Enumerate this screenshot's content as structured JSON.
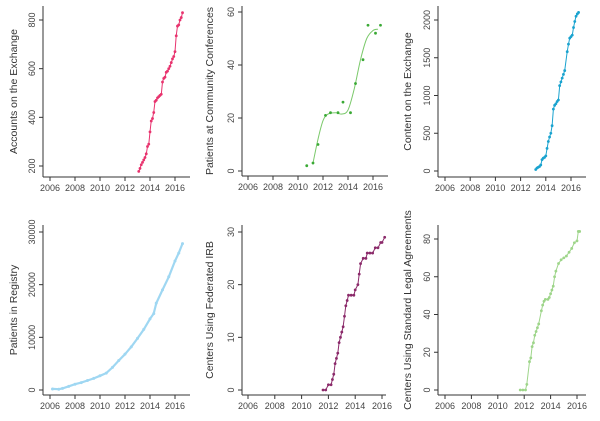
{
  "chart_data": [
    {
      "type": "scatter",
      "ylabel": "Accounts on the Exchange",
      "xticks": [
        "2006",
        "2008",
        "2010",
        "2012",
        "2014",
        "2016"
      ],
      "yticks": [
        200,
        400,
        600,
        800
      ],
      "color": "#e8336e",
      "line": "connect",
      "points": [
        [
          2013.1,
          178
        ],
        [
          2013.2,
          190
        ],
        [
          2013.3,
          205
        ],
        [
          2013.4,
          215
        ],
        [
          2013.5,
          225
        ],
        [
          2013.6,
          235
        ],
        [
          2013.7,
          250
        ],
        [
          2013.8,
          280
        ],
        [
          2013.9,
          290
        ],
        [
          2014.0,
          340
        ],
        [
          2014.1,
          385
        ],
        [
          2014.2,
          395
        ],
        [
          2014.3,
          420
        ],
        [
          2014.4,
          465
        ],
        [
          2014.5,
          470
        ],
        [
          2014.6,
          480
        ],
        [
          2014.7,
          485
        ],
        [
          2014.8,
          490
        ],
        [
          2014.9,
          495
        ],
        [
          2015.0,
          545
        ],
        [
          2015.1,
          560
        ],
        [
          2015.2,
          565
        ],
        [
          2015.3,
          585
        ],
        [
          2015.4,
          590
        ],
        [
          2015.5,
          600
        ],
        [
          2015.6,
          610
        ],
        [
          2015.7,
          625
        ],
        [
          2015.8,
          640
        ],
        [
          2015.9,
          650
        ],
        [
          2016.0,
          670
        ],
        [
          2016.1,
          735
        ],
        [
          2016.2,
          775
        ],
        [
          2016.3,
          780
        ],
        [
          2016.4,
          800
        ],
        [
          2016.5,
          810
        ],
        [
          2016.6,
          830
        ]
      ]
    },
    {
      "type": "scatter",
      "ylabel": "Patients at Community Conferences",
      "xticks": [
        "2006",
        "2008",
        "2010",
        "2012",
        "2014",
        "2016"
      ],
      "yticks": [
        0,
        20,
        40,
        60
      ],
      "color": "#3aa935",
      "line_color": "#7bc96b",
      "line": "smooth",
      "points": [
        [
          2010.7,
          2
        ],
        [
          2011.2,
          3
        ],
        [
          2011.6,
          10
        ],
        [
          2012.2,
          21
        ],
        [
          2012.6,
          22
        ],
        [
          2013.2,
          22
        ],
        [
          2013.6,
          26
        ],
        [
          2014.2,
          22
        ],
        [
          2014.6,
          33
        ],
        [
          2015.2,
          42
        ],
        [
          2015.6,
          55
        ],
        [
          2016.2,
          52
        ],
        [
          2016.6,
          55
        ]
      ],
      "fit": [
        [
          2011.2,
          3
        ],
        [
          2011.6,
          12
        ],
        [
          2012.0,
          19
        ],
        [
          2012.4,
          21.5
        ],
        [
          2013.0,
          22
        ],
        [
          2013.5,
          21.5
        ],
        [
          2014.0,
          23
        ],
        [
          2014.5,
          31
        ],
        [
          2015.0,
          42
        ],
        [
          2015.5,
          50
        ],
        [
          2016.0,
          53
        ],
        [
          2016.4,
          53.5
        ]
      ]
    },
    {
      "type": "scatter",
      "ylabel": "Content on the Exchange",
      "xticks": [
        "2006",
        "2008",
        "2010",
        "2012",
        "2014",
        "2016"
      ],
      "yticks": [
        0,
        500,
        1000,
        1500,
        2000
      ],
      "color": "#1aa3cf",
      "line": "connect",
      "points": [
        [
          2013.2,
          20
        ],
        [
          2013.3,
          40
        ],
        [
          2013.4,
          50
        ],
        [
          2013.5,
          60
        ],
        [
          2013.6,
          80
        ],
        [
          2013.7,
          150
        ],
        [
          2013.8,
          170
        ],
        [
          2013.9,
          180
        ],
        [
          2014.0,
          200
        ],
        [
          2014.1,
          300
        ],
        [
          2014.2,
          390
        ],
        [
          2014.3,
          450
        ],
        [
          2014.4,
          500
        ],
        [
          2014.5,
          600
        ],
        [
          2014.6,
          820
        ],
        [
          2014.7,
          870
        ],
        [
          2014.8,
          890
        ],
        [
          2014.9,
          920
        ],
        [
          2015.0,
          940
        ],
        [
          2015.1,
          1130
        ],
        [
          2015.2,
          1180
        ],
        [
          2015.3,
          1230
        ],
        [
          2015.4,
          1280
        ],
        [
          2015.5,
          1330
        ],
        [
          2015.7,
          1580
        ],
        [
          2015.8,
          1680
        ],
        [
          2015.9,
          1760
        ],
        [
          2016.0,
          1780
        ],
        [
          2016.1,
          1800
        ],
        [
          2016.2,
          1900
        ],
        [
          2016.3,
          1980
        ],
        [
          2016.4,
          2050
        ],
        [
          2016.5,
          2080
        ],
        [
          2016.6,
          2100
        ]
      ]
    },
    {
      "type": "scatter",
      "ylabel": "Patients in Registry",
      "xticks": [
        "2006",
        "2008",
        "2010",
        "2012",
        "2014",
        "2016"
      ],
      "yticks": [
        0,
        10000,
        20000,
        30000
      ],
      "color": "#9fd7f2",
      "line": "connect",
      "points": [
        [
          2006.2,
          200
        ],
        [
          2006.7,
          150
        ],
        [
          2007.0,
          300
        ],
        [
          2007.5,
          700
        ],
        [
          2008.0,
          1100
        ],
        [
          2008.5,
          1400
        ],
        [
          2009.0,
          1800
        ],
        [
          2009.5,
          2200
        ],
        [
          2010.0,
          2700
        ],
        [
          2010.5,
          3200
        ],
        [
          2011.0,
          4300
        ],
        [
          2011.5,
          5600
        ],
        [
          2012.0,
          6800
        ],
        [
          2012.5,
          8200
        ],
        [
          2013.0,
          9800
        ],
        [
          2013.5,
          11500
        ],
        [
          2014.0,
          13500
        ],
        [
          2014.3,
          14500
        ],
        [
          2014.5,
          16500
        ],
        [
          2015.0,
          19000
        ],
        [
          2015.5,
          21500
        ],
        [
          2016.0,
          24500
        ],
        [
          2016.3,
          26000
        ],
        [
          2016.6,
          27800
        ]
      ]
    },
    {
      "type": "scatter",
      "ylabel": "Centers Using Federated IRB",
      "xticks": [
        "2006",
        "2008",
        "2010",
        "2012",
        "2014",
        "2016"
      ],
      "yticks": [
        0,
        10,
        20,
        30
      ],
      "color": "#8b2a6a",
      "line": "connect",
      "points": [
        [
          2011.6,
          0
        ],
        [
          2011.8,
          0
        ],
        [
          2012.0,
          1
        ],
        [
          2012.2,
          1
        ],
        [
          2012.3,
          2
        ],
        [
          2012.4,
          3
        ],
        [
          2012.5,
          5
        ],
        [
          2012.6,
          6
        ],
        [
          2012.7,
          7
        ],
        [
          2012.8,
          9
        ],
        [
          2012.9,
          10
        ],
        [
          2013.0,
          11
        ],
        [
          2013.1,
          12
        ],
        [
          2013.2,
          14
        ],
        [
          2013.3,
          16
        ],
        [
          2013.4,
          17
        ],
        [
          2013.5,
          18
        ],
        [
          2013.7,
          18
        ],
        [
          2013.9,
          18
        ],
        [
          2014.0,
          19
        ],
        [
          2014.2,
          20
        ],
        [
          2014.3,
          22
        ],
        [
          2014.4,
          24
        ],
        [
          2014.6,
          25
        ],
        [
          2014.8,
          25
        ],
        [
          2014.9,
          26
        ],
        [
          2015.1,
          26
        ],
        [
          2015.3,
          26
        ],
        [
          2015.5,
          27
        ],
        [
          2015.7,
          27
        ],
        [
          2015.9,
          28
        ],
        [
          2016.0,
          28
        ],
        [
          2016.2,
          29
        ]
      ]
    },
    {
      "type": "scatter",
      "ylabel": "Centers Using Standard Legal Agreements",
      "xticks": [
        "2006",
        "2008",
        "2010",
        "2012",
        "2014",
        "2016"
      ],
      "yticks": [
        0,
        20,
        40,
        60,
        80
      ],
      "color": "#9ed58a",
      "line": "connect",
      "points": [
        [
          2011.7,
          0
        ],
        [
          2011.9,
          0
        ],
        [
          2012.1,
          0
        ],
        [
          2012.2,
          3
        ],
        [
          2012.4,
          15
        ],
        [
          2012.5,
          17
        ],
        [
          2012.6,
          23
        ],
        [
          2012.7,
          25
        ],
        [
          2012.8,
          29
        ],
        [
          2012.9,
          31
        ],
        [
          2013.0,
          33
        ],
        [
          2013.1,
          35
        ],
        [
          2013.3,
          42
        ],
        [
          2013.4,
          45
        ],
        [
          2013.5,
          47
        ],
        [
          2013.6,
          48
        ],
        [
          2013.8,
          48
        ],
        [
          2013.9,
          49
        ],
        [
          2014.0,
          51
        ],
        [
          2014.1,
          53
        ],
        [
          2014.2,
          55
        ],
        [
          2014.3,
          60
        ],
        [
          2014.4,
          63
        ],
        [
          2014.6,
          67
        ],
        [
          2014.8,
          69
        ],
        [
          2015.0,
          70
        ],
        [
          2015.2,
          71
        ],
        [
          2015.4,
          73
        ],
        [
          2015.6,
          75
        ],
        [
          2015.8,
          78
        ],
        [
          2016.0,
          79
        ],
        [
          2016.1,
          84
        ],
        [
          2016.2,
          84
        ]
      ]
    }
  ]
}
